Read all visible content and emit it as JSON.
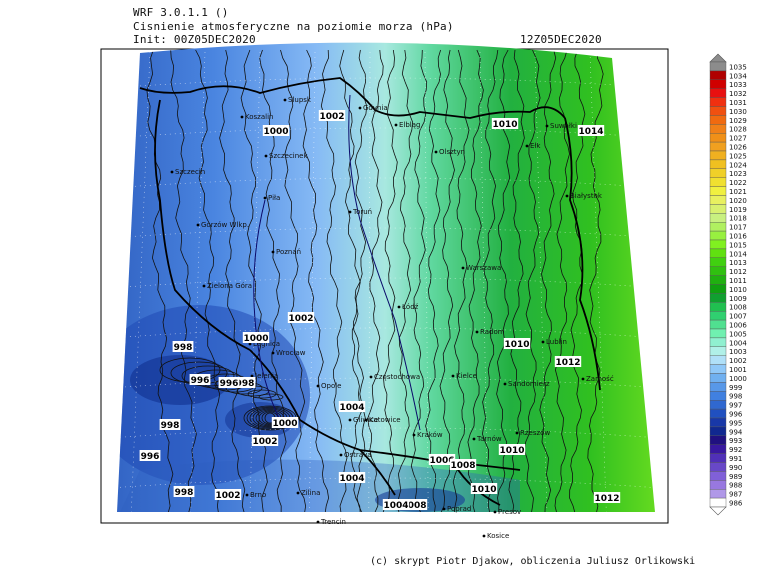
{
  "header": {
    "model": "WRF 3.0.1.1 ()",
    "variable": "Cisnienie atmosferyczne na poziomie morza (hPa)",
    "init": "Init: 00Z05DEC2020",
    "valid": "12Z05DEC2020"
  },
  "credit": "(c) skrypt Piotr Djakow, obliczenia Juliusz Orlikowski",
  "colorbar": {
    "levels": [
      "1035",
      "1034",
      "1033",
      "1032",
      "1031",
      "1030",
      "1029",
      "1028",
      "1027",
      "1026",
      "1025",
      "1024",
      "1023",
      "1022",
      "1021",
      "1020",
      "1019",
      "1018",
      "1017",
      "1016",
      "1015",
      "1014",
      "1013",
      "1012",
      "1011",
      "1010",
      "1009",
      "1008",
      "1007",
      "1006",
      "1005",
      "1004",
      "1003",
      "1002",
      "1001",
      "1000",
      "999",
      "998",
      "997",
      "996",
      "995",
      "994",
      "993",
      "992",
      "991",
      "990",
      "989",
      "988",
      "987",
      "986"
    ],
    "colors": [
      "#8c8c8c",
      "#b00000",
      "#d00000",
      "#e81010",
      "#f03010",
      "#f05010",
      "#f06a10",
      "#f08018",
      "#f09018",
      "#f0a020",
      "#f0b020",
      "#f0c020",
      "#f0d028",
      "#f0e030",
      "#f0f040",
      "#e8f060",
      "#d8f070",
      "#c8f080",
      "#b0f060",
      "#98f040",
      "#80f020",
      "#60e010",
      "#40d010",
      "#30c010",
      "#20b010",
      "#10a010",
      "#10a030",
      "#20c050",
      "#30d070",
      "#50e090",
      "#70f0b0",
      "#90f0d0",
      "#b0f0e8",
      "#b0e0f8",
      "#90c8f8",
      "#70b0f0",
      "#5898e8",
      "#4080e0",
      "#3068d0",
      "#2050c0",
      "#1838a8",
      "#102890",
      "#201080",
      "#3818a0",
      "#5030b8",
      "#6848c8",
      "#8060d8",
      "#9878e0",
      "#b098e8",
      "#ffffff"
    ]
  },
  "isobar_labels": [
    "1002",
    "1000",
    "1010",
    "1014",
    "1002",
    "998",
    "1000",
    "996",
    "998",
    "996",
    "1010",
    "1012",
    "1004",
    "1000",
    "998",
    "1002",
    "996",
    "1010",
    "1006",
    "1008",
    "998",
    "1002",
    "1010",
    "1012",
    "1008",
    "1004",
    "1004"
  ],
  "cities": [
    "Slupsk",
    "Koszalin",
    "Gdynia",
    "Elbląg",
    "Suwałki",
    "Szczecinek",
    "Olsztyn",
    "Ełk",
    "Szczecin",
    "Piła",
    "Toruń",
    "Białystok",
    "Gorzów Wlkp.",
    "Poznań",
    "Warszawa",
    "Zielona Góra",
    "Łódź",
    "Radom",
    "Lublin",
    "Legnica",
    "Wrocław",
    "Opole",
    "Kielce",
    "Zamość",
    "Jelenia",
    "Częstochowa",
    "Sandomierz",
    "Gliwice",
    "Katowice",
    "Kraków",
    "Tarnów",
    "Rzeszów",
    "Ostrava",
    "Zilina",
    "Brno",
    "Poprad",
    "Presov",
    "Trencin",
    "Kosice"
  ]
}
